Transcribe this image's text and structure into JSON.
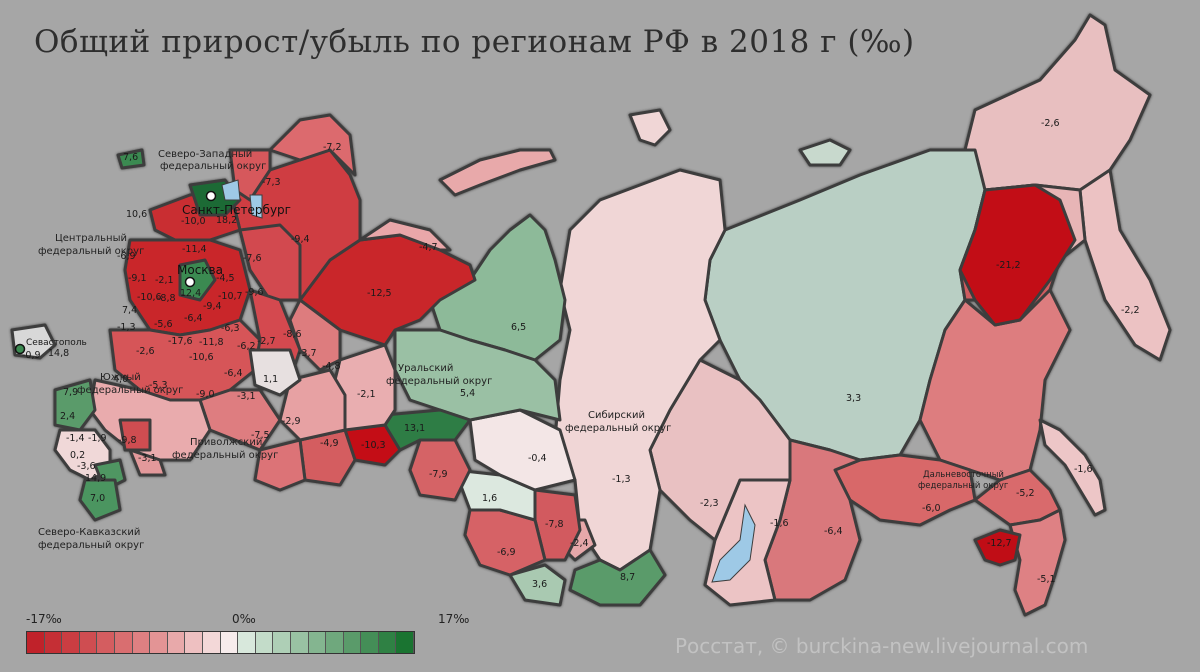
{
  "title": "Общий прирост/убыль по регионам РФ в 2018 г (‰)",
  "credit": "Росстат, © burckina-new.livejournal.com",
  "legend": {
    "min_label": "-17‰",
    "mid_label": "0‰",
    "max_label": "17‰",
    "colors": [
      "#c0222a",
      "#c52f35",
      "#ca3d42",
      "#cf4d51",
      "#d45d60",
      "#d96e70",
      "#de8082",
      "#e39495",
      "#e8a9aa",
      "#eec0c1",
      "#f3d8d8",
      "#f7ecec",
      "#d8e8dc",
      "#c3dcc9",
      "#aecfb6",
      "#99c2a3",
      "#84b590",
      "#6fa87d",
      "#5a9b6a",
      "#448e57",
      "#2f8144",
      "#1a7431"
    ]
  },
  "districts": [
    {
      "name": "Северо-Западный федеральный округ"
    },
    {
      "name": "Центральный федеральный округ"
    },
    {
      "name": "Южный федеральный округ"
    },
    {
      "name": "Северо-Кавказский федеральный округ"
    },
    {
      "name": "Приволжский федеральный округ"
    },
    {
      "name": "Уральский федеральный округ"
    },
    {
      "name": "Сибирский федеральный округ"
    },
    {
      "name": "Дальневосточный федеральный округ"
    }
  ],
  "cities": [
    {
      "name": "Севастополь",
      "value": "14,8"
    },
    {
      "name": "Санкт-Петербург",
      "value": "18,2"
    },
    {
      "name": "Москва",
      "value": "12,4"
    }
  ],
  "region_values": [
    "7,6",
    "-7,2",
    "-7,3",
    "-10,0",
    "10,6",
    "-9,4",
    "-4,7",
    "-11,4",
    "-6,9",
    "-7,6",
    "-4,5",
    "-9,1",
    "-2,1",
    "-10,7",
    "-9,6",
    "-12,5",
    "7,4",
    "-10,6",
    "-8,8",
    "-6,4",
    "-9,4",
    "-5,6",
    "-1,3",
    "-6,3",
    "-8,6",
    "-17,6",
    "-11,8",
    "-2,7",
    "-2,6",
    "-10,6",
    "-6,2",
    "-3,7",
    "-4,8",
    "4,0",
    "-5,3",
    "-6,4",
    "1,1",
    "7,9",
    "-9,0",
    "-3,1",
    "-2,1",
    "2,4",
    "-2,9",
    "-1,4",
    "-1,9",
    "-9,8",
    "-7,5",
    "-4,9",
    "0,2",
    "-3,1",
    "-3,6",
    "14,9",
    "7,0",
    "-0,9",
    "6,5",
    "5,4",
    "13,1",
    "-10,3",
    "-7,9",
    "-0,4",
    "1,6",
    "-1,3",
    "-7,8",
    "-6,9",
    "-2,4",
    "3,6",
    "8,7",
    "-2,3",
    "-1,6",
    "-6,4",
    "3,3",
    "-2,6",
    "-2,2",
    "-21,2",
    "-1,6",
    "-6,0",
    "-5,2",
    "-12,7",
    "-5,1"
  ]
}
